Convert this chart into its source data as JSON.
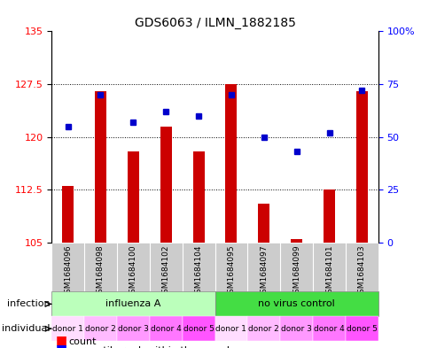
{
  "title": "GDS6063 / ILMN_1882185",
  "samples": [
    "GSM1684096",
    "GSM1684098",
    "GSM1684100",
    "GSM1684102",
    "GSM1684104",
    "GSM1684095",
    "GSM1684097",
    "GSM1684099",
    "GSM1684101",
    "GSM1684103"
  ],
  "count_values": [
    113.0,
    126.5,
    118.0,
    121.5,
    118.0,
    127.5,
    110.5,
    105.5,
    112.5,
    126.5
  ],
  "percentile_values": [
    55,
    70,
    57,
    62,
    60,
    70,
    50,
    43,
    52,
    72
  ],
  "ylim_left": [
    105,
    135
  ],
  "ylim_right": [
    0,
    100
  ],
  "yticks_left": [
    105,
    112.5,
    120,
    127.5,
    135
  ],
  "yticks_right": [
    0,
    25,
    50,
    75,
    100
  ],
  "infection_labels": [
    "influenza A",
    "no virus control"
  ],
  "infection_colors": [
    "#aaffaa",
    "#44cc44"
  ],
  "individual_labels": [
    "donor 1",
    "donor 2",
    "donor 3",
    "donor 4",
    "donor 5",
    "donor 1",
    "donor 2",
    "donor 3",
    "donor 4",
    "donor 5"
  ],
  "individual_colors": [
    "#ffaaff",
    "#ff88ff",
    "#ff66ff",
    "#ff44ee",
    "#ff22ee",
    "#ffaaff",
    "#ff88ff",
    "#ff66ff",
    "#ff44ee",
    "#ff22ee"
  ],
  "bar_color": "#cc0000",
  "dot_color": "#0000cc",
  "bg_color": "#cccccc",
  "plot_bg": "#ffffff",
  "grid_color": "#000000"
}
